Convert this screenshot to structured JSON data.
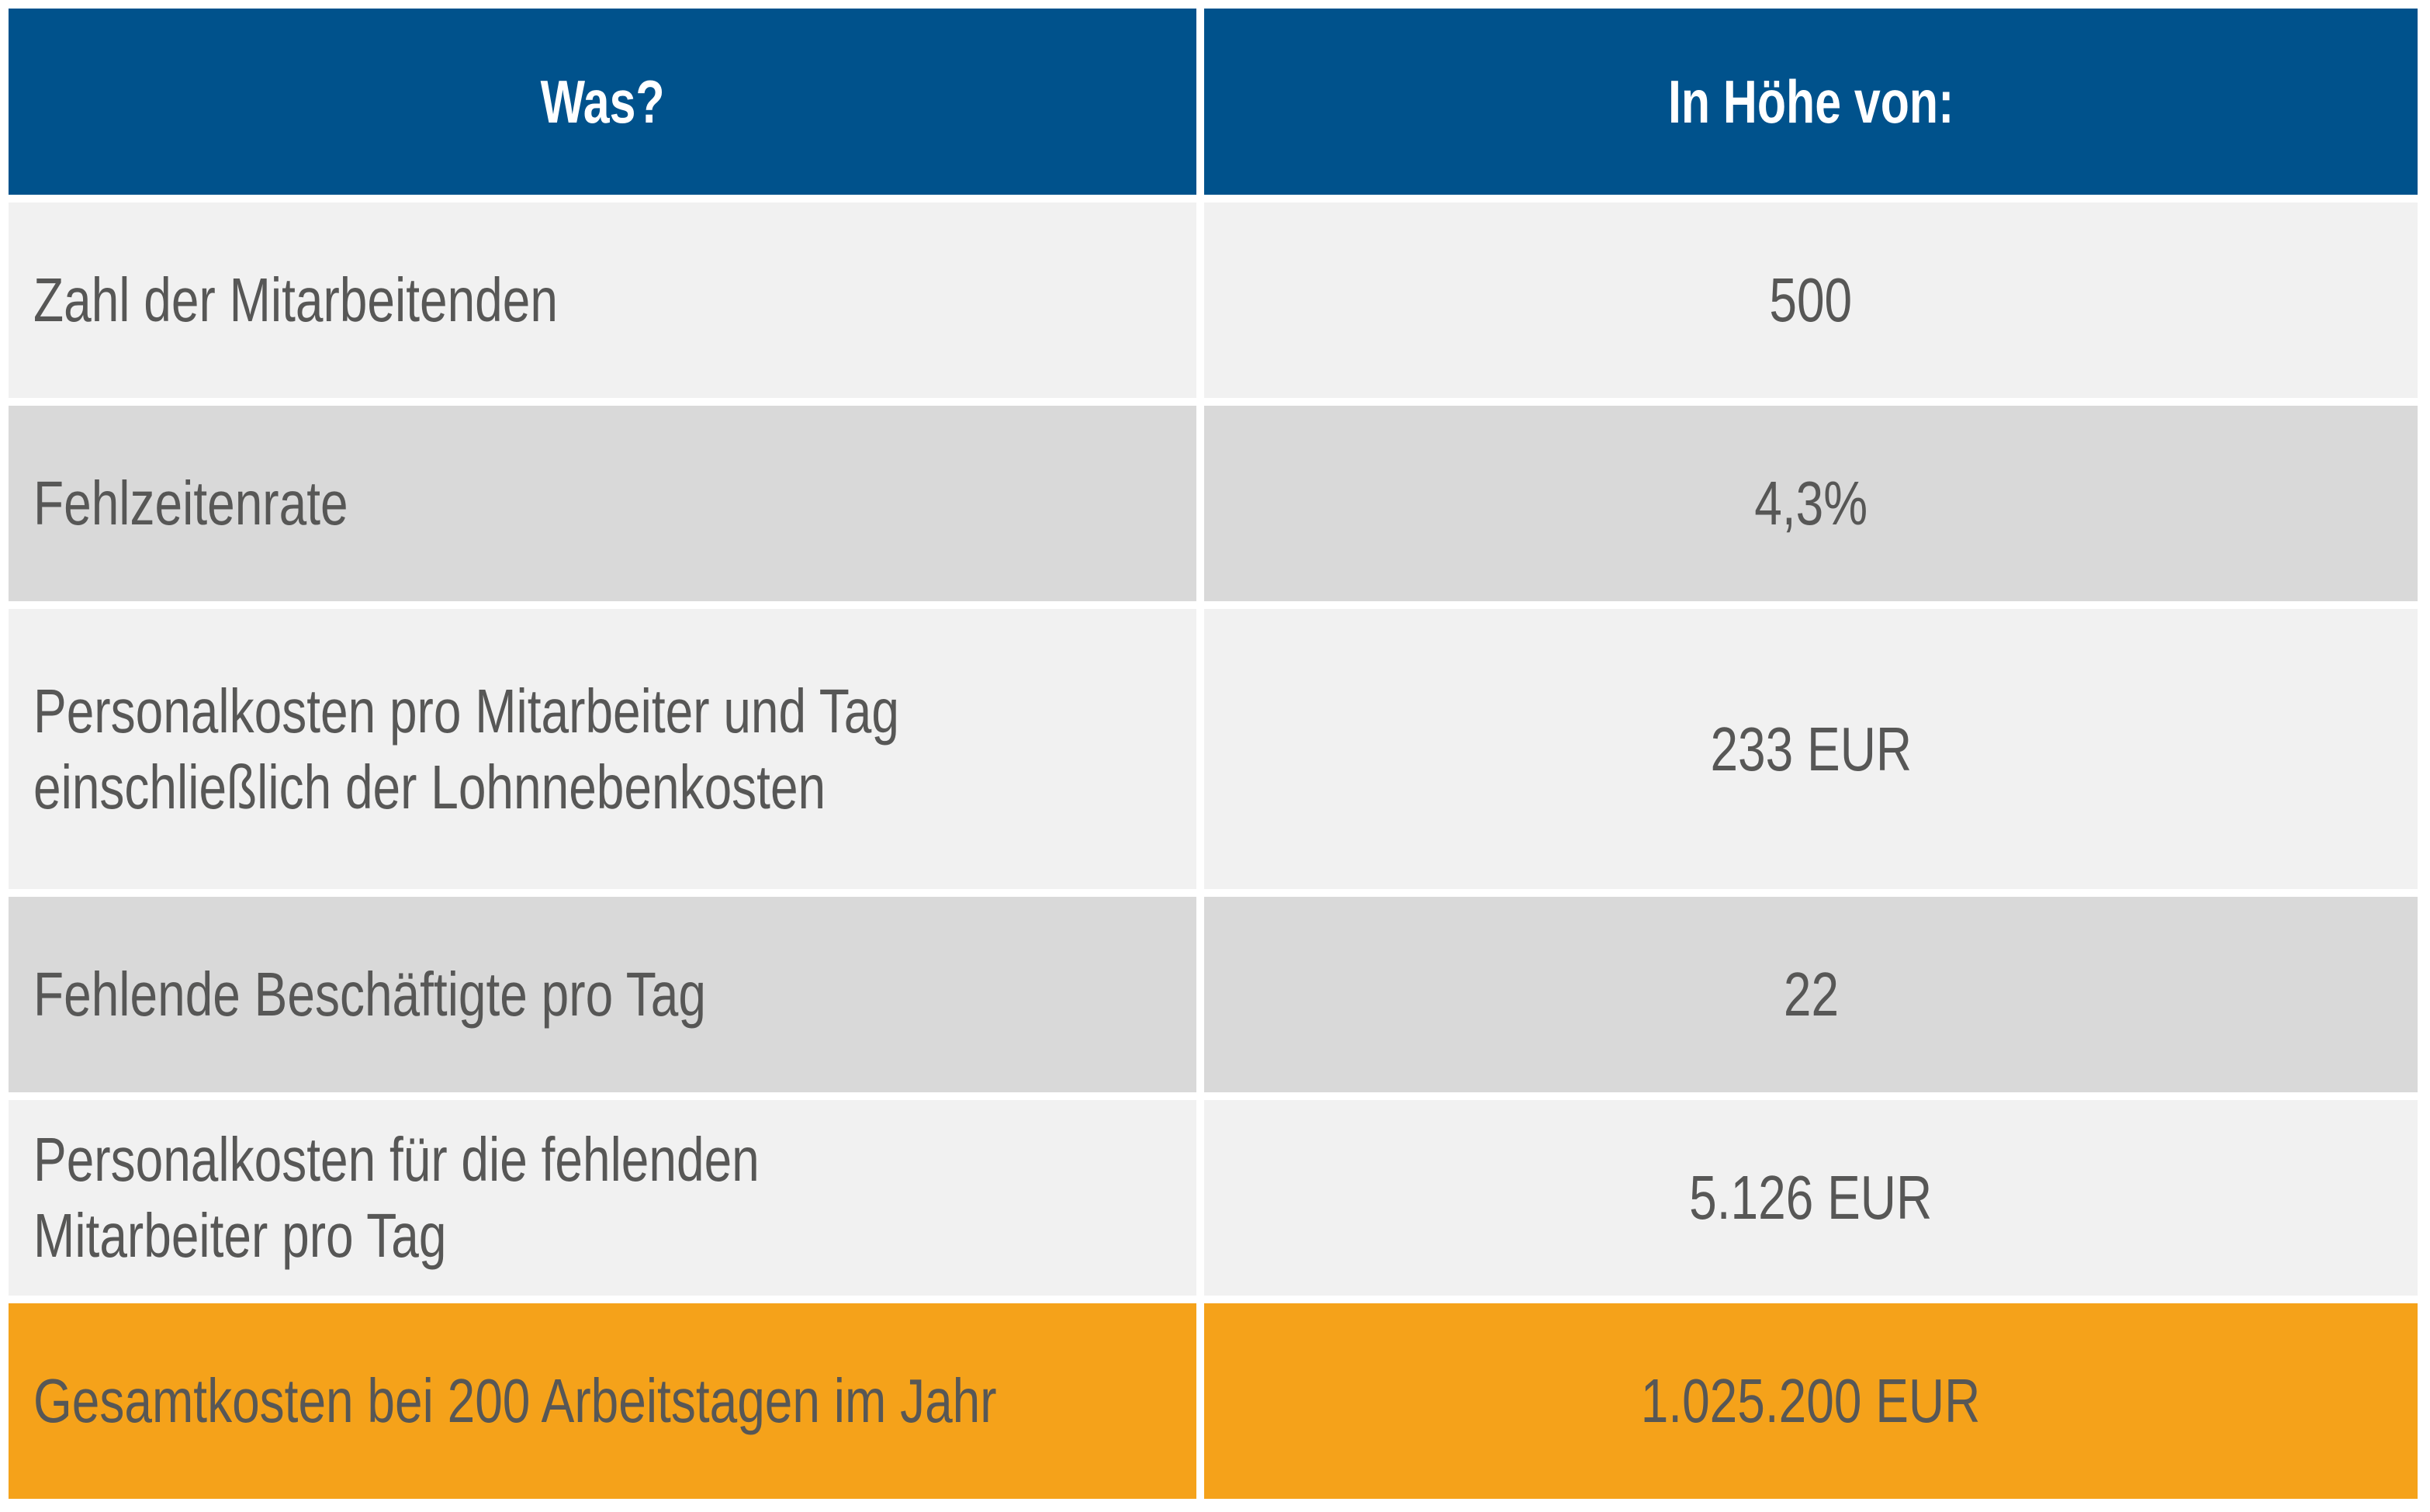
{
  "header": {
    "col1": "Was?",
    "col2": "In Höhe von:"
  },
  "colors": {
    "header_bg": "#00528c",
    "row_light": "#f1f1f1",
    "row_dark": "#d9d9d9",
    "total_bg": "#f5a21a",
    "text": "#575756"
  },
  "rows": [
    {
      "label_lines": [
        "Zahl der Mitarbeitenden"
      ],
      "value": "500"
    },
    {
      "label_lines": [
        "Fehlzeitenrate"
      ],
      "value": "4,3%"
    },
    {
      "label_lines": [
        "Personalkosten pro Mitarbeiter und Tag",
        "einschließlich der Lohnnebenkosten"
      ],
      "value": "233 EUR"
    },
    {
      "label_lines": [
        "Fehlende Beschäftigte pro Tag"
      ],
      "value": "22"
    },
    {
      "label_lines": [
        "Personalkosten für die fehlenden",
        "Mitarbeiter pro Tag"
      ],
      "value": "5.126 EUR"
    },
    {
      "label_lines": [
        "Gesamtkosten bei 200 Arbeitstagen im Jahr"
      ],
      "value": "1.025.200 EUR"
    }
  ]
}
